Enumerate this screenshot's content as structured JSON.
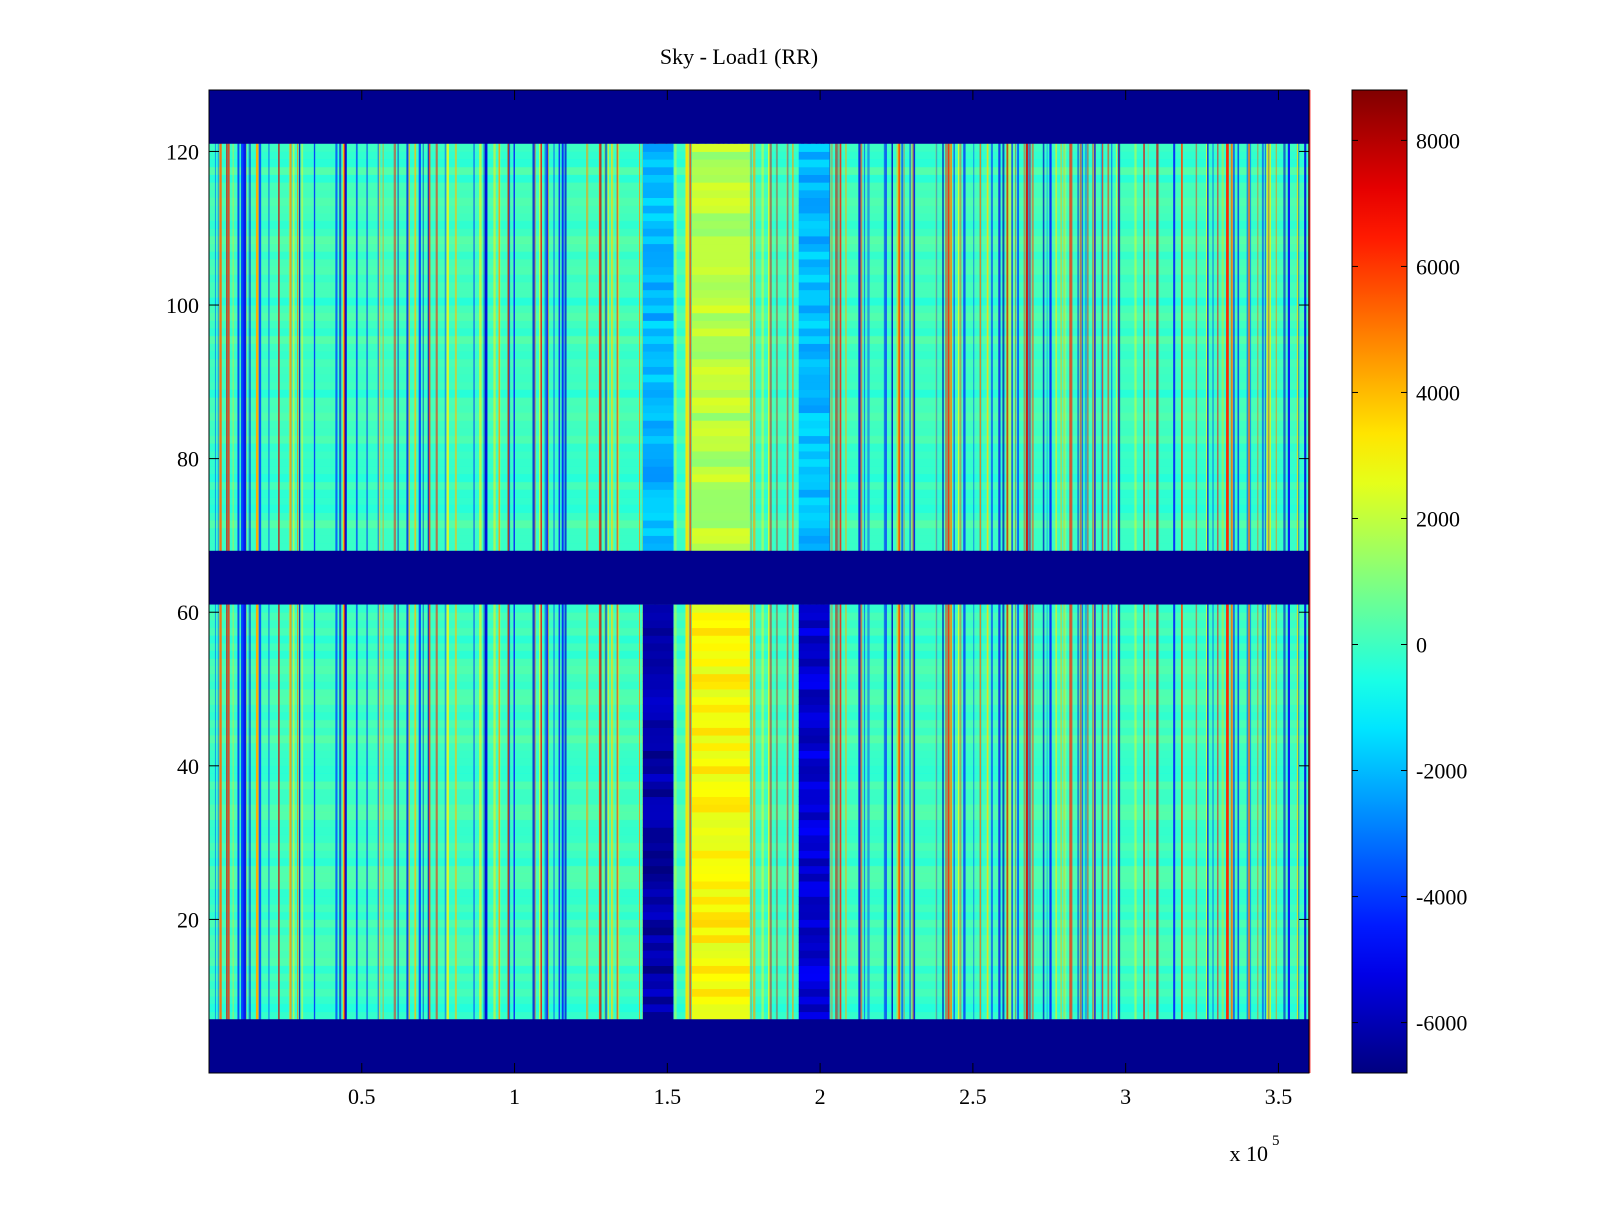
{
  "chart_data": {
    "type": "heatmap",
    "title": "Sky - Load1 (RR)",
    "xlabel": "",
    "ylabel": "",
    "x_multiplier_label": {
      "base": "x 10",
      "exponent": "5"
    },
    "xlim": [
      0.0,
      3.6
    ],
    "ylim": [
      0,
      128
    ],
    "x_ticks": [
      0.5,
      1,
      1.5,
      2,
      2.5,
      3,
      3.5
    ],
    "x_tick_labels": [
      "0.5",
      "1",
      "1.5",
      "2",
      "2.5",
      "3",
      "3.5"
    ],
    "y_ticks": [
      20,
      40,
      60,
      80,
      100,
      120
    ],
    "y_tick_labels": [
      "20",
      "40",
      "60",
      "80",
      "100",
      "120"
    ],
    "colormap": "jet",
    "clim": [
      -6800,
      8800
    ],
    "colorbar_ticks": [
      8000,
      6000,
      4000,
      2000,
      0,
      -2000,
      -4000,
      -6000
    ],
    "colorbar_tick_labels": [
      "8000",
      "6000",
      "4000",
      "2000",
      "0",
      "-2000",
      "-4000",
      "-6000"
    ],
    "masked_value": -6800,
    "masked_row_bands": [
      [
        0,
        7
      ],
      [
        61,
        68
      ],
      [
        121,
        128
      ]
    ],
    "background_value": 0,
    "x_bands": [
      {
        "x_start": 1.42,
        "x_end": 1.52,
        "value_low_rows": -6200,
        "value_high_rows": -2000
      },
      {
        "x_start": 1.58,
        "x_end": 1.77,
        "value_low_rows": 3000,
        "value_high_rows": 1800
      },
      {
        "x_start": 1.93,
        "x_end": 2.03,
        "value_low_rows": -5500,
        "value_high_rows": -2000
      }
    ],
    "colors": {
      "masked": "#00008f",
      "axes_edge": "#000000",
      "background": "#ffffff"
    }
  }
}
